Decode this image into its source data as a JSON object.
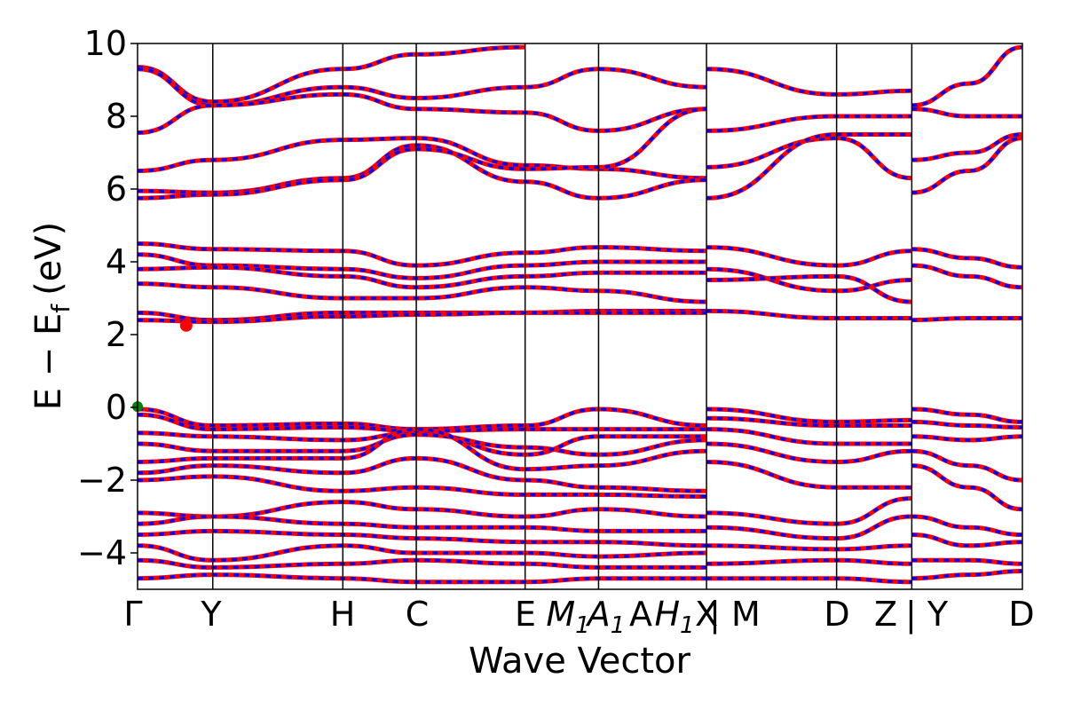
{
  "chart_data": {
    "type": "line",
    "title": "",
    "xlabel": "Wave Vector",
    "ylabel": "E − E",
    "ylabel_subscript": "f",
    "ylabel_unit": "(eV)",
    "ylim": [
      -5,
      10
    ],
    "yticks": [
      -4,
      -2,
      0,
      2,
      4,
      6,
      8,
      10
    ],
    "ytick_labels": [
      "−4",
      "−2",
      "0",
      "2",
      "4",
      "6",
      "8",
      "10"
    ],
    "xlim": [
      0,
      1
    ],
    "high_symmetry_points": [
      {
        "label": "Γ",
        "x": 0.0
      },
      {
        "label": "Y",
        "x": 0.085
      },
      {
        "label": "H",
        "x": 0.232
      },
      {
        "label": "C",
        "x": 0.315
      },
      {
        "label": "E",
        "x": 0.438
      },
      {
        "label": "M1|A",
        "x": 0.521
      },
      {
        "label": "H1|X",
        "x": 0.643
      },
      {
        "label": "M",
        "x": 0.643
      },
      {
        "label": "D",
        "x": 0.79
      },
      {
        "label": "Z|Y",
        "x": 0.875
      },
      {
        "label": "D",
        "x": 1.0
      }
    ],
    "x_tick_texts": [
      {
        "text": "Γ",
        "italic": false
      },
      {
        "text": "Y",
        "italic": false
      },
      {
        "text": "H",
        "italic": false
      },
      {
        "text": "C",
        "italic": false
      },
      {
        "text": "E",
        "italic": false
      },
      {
        "text": "M",
        "sub": "1",
        "italic": true
      },
      {
        "text": "A",
        "sub": "1",
        "italic": true
      },
      {
        "text": "A",
        "italic": false
      },
      {
        "text": "H",
        "sub": "1",
        "italic": true
      },
      {
        "text": "X",
        "italic": false
      },
      {
        "text": "| M",
        "italic": false
      },
      {
        "text": "D",
        "italic": false
      },
      {
        "text": "Z",
        "italic": false
      },
      {
        "text": "| Y",
        "italic": false
      },
      {
        "text": "D",
        "italic": false
      }
    ],
    "series": [
      {
        "color": "#ff0000",
        "style": "solid"
      },
      {
        "color": "#0000ff",
        "style": "dashed"
      }
    ],
    "bands": [
      [
        [
          0,
          9.35
        ],
        [
          0.085,
          8.4
        ],
        [
          0.232,
          9.3
        ],
        [
          0.315,
          9.7
        ],
        [
          0.438,
          9.9
        ]
      ],
      [
        [
          0,
          9.3
        ],
        [
          0.085,
          8.3
        ],
        [
          0.232,
          8.8
        ],
        [
          0.315,
          8.5
        ],
        [
          0.438,
          8.8
        ],
        [
          0.521,
          9.3
        ],
        [
          0.643,
          8.8
        ]
      ],
      [
        [
          0,
          7.55
        ],
        [
          0.085,
          8.3
        ],
        [
          0.232,
          8.6
        ],
        [
          0.315,
          8.2
        ],
        [
          0.438,
          8.1
        ],
        [
          0.521,
          7.6
        ],
        [
          0.643,
          8.2
        ]
      ],
      [
        [
          0.643,
          9.3
        ],
        [
          0.79,
          8.6
        ],
        [
          0.875,
          8.7
        ]
      ],
      [
        [
          0.643,
          7.6
        ],
        [
          0.79,
          8.0
        ],
        [
          0.875,
          8.0
        ]
      ],
      [
        [
          0.875,
          8.3
        ],
        [
          0.94,
          8.9
        ],
        [
          1.0,
          9.9
        ]
      ],
      [
        [
          0.875,
          8.2
        ],
        [
          0.94,
          8.0
        ],
        [
          1.0,
          8.0
        ]
      ],
      [
        [
          0,
          6.5
        ],
        [
          0.085,
          6.8
        ],
        [
          0.232,
          7.35
        ],
        [
          0.315,
          7.4
        ],
        [
          0.438,
          6.65
        ],
        [
          0.521,
          6.55
        ],
        [
          0.643,
          6.3
        ]
      ],
      [
        [
          0,
          5.95
        ],
        [
          0.085,
          5.9
        ],
        [
          0.232,
          6.3
        ],
        [
          0.315,
          7.2
        ],
        [
          0.438,
          6.2
        ],
        [
          0.521,
          5.75
        ],
        [
          0.643,
          6.25
        ]
      ],
      [
        [
          0,
          5.75
        ],
        [
          0.085,
          5.85
        ],
        [
          0.232,
          6.25
        ],
        [
          0.315,
          7.1
        ],
        [
          0.438,
          6.55
        ],
        [
          0.521,
          6.6
        ],
        [
          0.643,
          8.2
        ]
      ],
      [
        [
          0.643,
          6.6
        ],
        [
          0.79,
          7.4
        ],
        [
          0.875,
          6.3
        ]
      ],
      [
        [
          0.643,
          5.75
        ],
        [
          0.79,
          7.5
        ],
        [
          0.875,
          7.5
        ]
      ],
      [
        [
          0.875,
          6.8
        ],
        [
          0.94,
          7.0
        ],
        [
          1.0,
          7.5
        ]
      ],
      [
        [
          0.875,
          5.9
        ],
        [
          0.94,
          6.5
        ],
        [
          1.0,
          7.4
        ]
      ],
      [
        [
          0,
          4.5
        ],
        [
          0.085,
          4.35
        ],
        [
          0.232,
          4.3
        ],
        [
          0.315,
          3.9
        ],
        [
          0.438,
          4.25
        ],
        [
          0.521,
          4.4
        ],
        [
          0.643,
          4.3
        ]
      ],
      [
        [
          0,
          4.2
        ],
        [
          0.085,
          3.9
        ],
        [
          0.232,
          3.8
        ],
        [
          0.315,
          3.55
        ],
        [
          0.438,
          3.9
        ],
        [
          0.521,
          4.0
        ],
        [
          0.643,
          4.0
        ]
      ],
      [
        [
          0,
          3.8
        ],
        [
          0.085,
          3.85
        ],
        [
          0.232,
          3.6
        ],
        [
          0.315,
          3.3
        ],
        [
          0.438,
          3.6
        ],
        [
          0.521,
          3.7
        ],
        [
          0.643,
          3.7
        ]
      ],
      [
        [
          0,
          3.4
        ],
        [
          0.085,
          3.3
        ],
        [
          0.232,
          3.0
        ],
        [
          0.315,
          3.0
        ],
        [
          0.438,
          3.3
        ],
        [
          0.521,
          3.2
        ],
        [
          0.643,
          2.9
        ]
      ],
      [
        [
          0,
          2.6
        ],
        [
          0.085,
          2.4
        ],
        [
          0.232,
          2.6
        ],
        [
          0.315,
          2.6
        ],
        [
          0.438,
          2.6
        ],
        [
          0.521,
          2.65
        ],
        [
          0.643,
          2.65
        ]
      ],
      [
        [
          0,
          2.4
        ],
        [
          0.085,
          2.35
        ],
        [
          0.232,
          2.5
        ],
        [
          0.315,
          2.55
        ],
        [
          0.438,
          2.6
        ],
        [
          0.521,
          2.6
        ],
        [
          0.643,
          2.6
        ]
      ],
      [
        [
          0.643,
          4.4
        ],
        [
          0.79,
          3.9
        ],
        [
          0.875,
          4.3
        ]
      ],
      [
        [
          0.643,
          3.8
        ],
        [
          0.79,
          3.2
        ],
        [
          0.875,
          3.5
        ]
      ],
      [
        [
          0.643,
          3.5
        ],
        [
          0.79,
          3.6
        ],
        [
          0.875,
          2.9
        ]
      ],
      [
        [
          0.643,
          2.65
        ],
        [
          0.79,
          2.45
        ],
        [
          0.875,
          2.45
        ]
      ],
      [
        [
          0.875,
          4.35
        ],
        [
          0.94,
          4.1
        ],
        [
          1.0,
          3.85
        ]
      ],
      [
        [
          0.875,
          3.9
        ],
        [
          0.94,
          3.6
        ],
        [
          1.0,
          3.3
        ]
      ],
      [
        [
          0.875,
          2.4
        ],
        [
          0.94,
          2.45
        ],
        [
          1.0,
          2.45
        ]
      ],
      [
        [
          0,
          -0.05
        ],
        [
          0.085,
          -0.5
        ],
        [
          0.232,
          -0.45
        ],
        [
          0.315,
          -0.6
        ],
        [
          0.438,
          -0.5
        ],
        [
          0.521,
          -0.05
        ],
        [
          0.643,
          -0.5
        ]
      ],
      [
        [
          0,
          -0.2
        ],
        [
          0.085,
          -0.6
        ],
        [
          0.232,
          -0.55
        ],
        [
          0.315,
          -0.65
        ],
        [
          0.438,
          -0.6
        ],
        [
          0.521,
          -0.6
        ],
        [
          0.643,
          -0.6
        ]
      ],
      [
        [
          0,
          -0.7
        ],
        [
          0.085,
          -0.8
        ],
        [
          0.232,
          -0.9
        ],
        [
          0.315,
          -0.7
        ],
        [
          0.438,
          -1.3
        ],
        [
          0.521,
          -0.8
        ],
        [
          0.643,
          -0.8
        ]
      ],
      [
        [
          0,
          -1.0
        ],
        [
          0.085,
          -1.2
        ],
        [
          0.232,
          -1.2
        ],
        [
          0.315,
          -0.75
        ],
        [
          0.438,
          -1.1
        ],
        [
          0.521,
          -1.3
        ],
        [
          0.643,
          -0.9
        ]
      ],
      [
        [
          0,
          -1.5
        ],
        [
          0.085,
          -1.4
        ],
        [
          0.232,
          -1.4
        ],
        [
          0.315,
          -0.6
        ],
        [
          0.438,
          -1.7
        ],
        [
          0.521,
          -1.6
        ],
        [
          0.643,
          -1.2
        ]
      ],
      [
        [
          0,
          -1.8
        ],
        [
          0.085,
          -1.6
        ],
        [
          0.232,
          -1.8
        ],
        [
          0.315,
          -1.4
        ],
        [
          0.438,
          -2.0
        ],
        [
          0.521,
          -2.2
        ],
        [
          0.643,
          -2.3
        ]
      ],
      [
        [
          0,
          -2.0
        ],
        [
          0.085,
          -1.9
        ],
        [
          0.232,
          -2.3
        ],
        [
          0.315,
          -2.2
        ],
        [
          0.438,
          -2.4
        ],
        [
          0.521,
          -2.4
        ],
        [
          0.643,
          -2.45
        ]
      ],
      [
        [
          0.643,
          -0.05
        ],
        [
          0.79,
          -0.4
        ],
        [
          0.875,
          -0.35
        ]
      ],
      [
        [
          0.643,
          -0.3
        ],
        [
          0.79,
          -0.5
        ],
        [
          0.875,
          -0.5
        ]
      ],
      [
        [
          0.643,
          -0.6
        ],
        [
          0.79,
          -1.0
        ],
        [
          0.875,
          -1.0
        ]
      ],
      [
        [
          0.643,
          -1.0
        ],
        [
          0.79,
          -1.5
        ],
        [
          0.875,
          -1.2
        ]
      ],
      [
        [
          0.643,
          -1.5
        ],
        [
          0.79,
          -2.2
        ],
        [
          0.875,
          -2.2
        ]
      ],
      [
        [
          0.875,
          -0.05
        ],
        [
          0.94,
          -0.2
        ],
        [
          1.0,
          -0.4
        ]
      ],
      [
        [
          0.875,
          -0.4
        ],
        [
          0.94,
          -0.5
        ],
        [
          1.0,
          -0.55
        ]
      ],
      [
        [
          0.875,
          -0.8
        ],
        [
          0.94,
          -0.9
        ],
        [
          1.0,
          -0.8
        ]
      ],
      [
        [
          0.875,
          -1.2
        ],
        [
          0.94,
          -1.6
        ],
        [
          1.0,
          -2.0
        ]
      ],
      [
        [
          0.875,
          -1.6
        ],
        [
          0.94,
          -2.2
        ],
        [
          1.0,
          -2.8
        ]
      ],
      [
        [
          0,
          -2.9
        ],
        [
          0.085,
          -3.0
        ],
        [
          0.232,
          -2.6
        ],
        [
          0.315,
          -2.8
        ],
        [
          0.438,
          -3.0
        ],
        [
          0.521,
          -2.8
        ],
        [
          0.643,
          -3.0
        ]
      ],
      [
        [
          0,
          -3.2
        ],
        [
          0.085,
          -3.0
        ],
        [
          0.232,
          -3.2
        ],
        [
          0.315,
          -3.3
        ],
        [
          0.438,
          -3.3
        ],
        [
          0.521,
          -3.4
        ],
        [
          0.643,
          -3.4
        ]
      ],
      [
        [
          0,
          -3.5
        ],
        [
          0.085,
          -3.4
        ],
        [
          0.232,
          -3.5
        ],
        [
          0.315,
          -3.6
        ],
        [
          0.438,
          -3.7
        ],
        [
          0.521,
          -3.7
        ],
        [
          0.643,
          -3.8
        ]
      ],
      [
        [
          0,
          -3.8
        ],
        [
          0.085,
          -4.2
        ],
        [
          0.232,
          -3.8
        ],
        [
          0.315,
          -4.0
        ],
        [
          0.438,
          -4.0
        ],
        [
          0.521,
          -4.1
        ],
        [
          0.643,
          -4.0
        ]
      ],
      [
        [
          0,
          -4.2
        ],
        [
          0.085,
          -4.4
        ],
        [
          0.232,
          -4.3
        ],
        [
          0.315,
          -4.2
        ],
        [
          0.438,
          -4.3
        ],
        [
          0.521,
          -4.4
        ],
        [
          0.643,
          -4.4
        ]
      ],
      [
        [
          0,
          -4.7
        ],
        [
          0.085,
          -4.6
        ],
        [
          0.232,
          -4.7
        ],
        [
          0.315,
          -4.8
        ],
        [
          0.438,
          -4.8
        ],
        [
          0.521,
          -4.7
        ],
        [
          0.643,
          -4.7
        ]
      ],
      [
        [
          0.643,
          -2.9
        ],
        [
          0.79,
          -3.2
        ],
        [
          0.875,
          -2.5
        ]
      ],
      [
        [
          0.643,
          -3.3
        ],
        [
          0.79,
          -3.6
        ],
        [
          0.875,
          -3.0
        ]
      ],
      [
        [
          0.643,
          -3.8
        ],
        [
          0.79,
          -3.9
        ],
        [
          0.875,
          -3.8
        ]
      ],
      [
        [
          0.643,
          -4.3
        ],
        [
          0.79,
          -4.2
        ],
        [
          0.875,
          -4.3
        ]
      ],
      [
        [
          0.643,
          -4.7
        ],
        [
          0.79,
          -4.7
        ],
        [
          0.875,
          -4.8
        ]
      ],
      [
        [
          0.875,
          -3.0
        ],
        [
          0.94,
          -3.3
        ],
        [
          1.0,
          -3.5
        ]
      ],
      [
        [
          0.875,
          -3.5
        ],
        [
          0.94,
          -3.8
        ],
        [
          1.0,
          -3.7
        ]
      ],
      [
        [
          0.875,
          -4.2
        ],
        [
          0.94,
          -4.2
        ],
        [
          1.0,
          -4.3
        ]
      ],
      [
        [
          0.875,
          -4.7
        ],
        [
          0.94,
          -4.6
        ],
        [
          1.0,
          -4.5
        ]
      ]
    ],
    "markers": [
      {
        "x": 0.055,
        "y": 2.25,
        "color": "#ff0000",
        "size": 7
      },
      {
        "x": 0.0,
        "y": 0.02,
        "color": "#008000",
        "size": 6
      }
    ],
    "grid": false,
    "legend": "none"
  }
}
